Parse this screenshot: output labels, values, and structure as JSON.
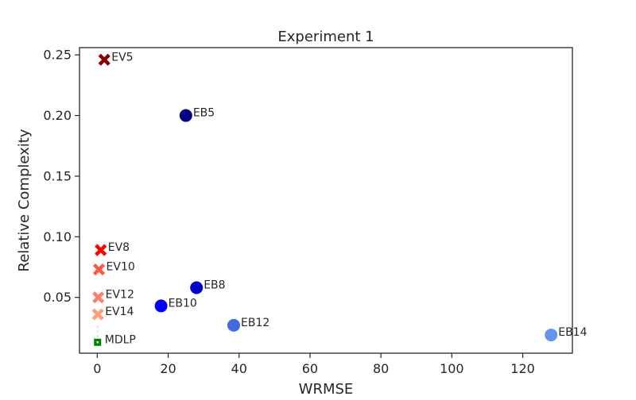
{
  "chart_data": {
    "type": "scatter",
    "title": "Experiment 1",
    "xlabel": "WRMSE",
    "ylabel": "Relative Complexity",
    "xlim": [
      -5,
      134
    ],
    "ylim": [
      0.004,
      0.256
    ],
    "x_ticks": [
      0,
      20,
      40,
      60,
      80,
      100,
      120
    ],
    "y_ticks": [
      0.05,
      0.1,
      0.15,
      0.2,
      0.25
    ],
    "grid": false,
    "points": [
      {
        "label": "EV5",
        "x": 2,
        "y": 0.246,
        "marker": "x",
        "color": "#8b0000"
      },
      {
        "label": "EB5",
        "x": 25,
        "y": 0.2,
        "marker": "circle",
        "color": "#000080"
      },
      {
        "label": "EV8",
        "x": 1,
        "y": 0.089,
        "marker": "x",
        "color": "#ff0000"
      },
      {
        "label": "EV10",
        "x": 0.5,
        "y": 0.073,
        "marker": "x",
        "color": "#ff5a40"
      },
      {
        "label": "EB8",
        "x": 28,
        "y": 0.058,
        "marker": "circle",
        "color": "#0000cd"
      },
      {
        "label": "EV12",
        "x": 0.3,
        "y": 0.05,
        "marker": "x",
        "color": "#fa8072"
      },
      {
        "label": "EB10",
        "x": 18,
        "y": 0.043,
        "marker": "circle",
        "color": "#0000ff"
      },
      {
        "label": "EV14",
        "x": 0.2,
        "y": 0.036,
        "marker": "x",
        "color": "#ffa07a"
      },
      {
        "label": "EB12",
        "x": 38.5,
        "y": 0.027,
        "marker": "circle",
        "color": "#4169e1"
      },
      {
        "label": "EB14",
        "x": 128,
        "y": 0.019,
        "marker": "circle",
        "color": "#6495ed"
      },
      {
        "label": "MDLP",
        "x": 0.1,
        "y": 0.013,
        "marker": "square",
        "color": "#008000"
      }
    ]
  }
}
